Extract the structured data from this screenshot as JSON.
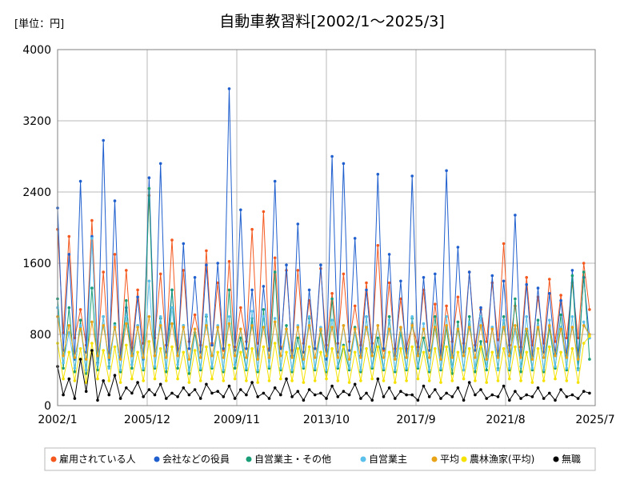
{
  "chart_data": {
    "type": "line",
    "title": "自動車教習料[2002/1～2025/3]",
    "unit_label": "[単位：円]",
    "ylim": [
      0,
      4000
    ],
    "yticks": [
      0,
      800,
      1600,
      2400,
      3200,
      4000
    ],
    "xlim": [
      "2002/1",
      "2025/7"
    ],
    "xticks": [
      "2002/1",
      "2005/12",
      "2009/11",
      "2013/10",
      "2017/9",
      "2021/8",
      "2025/7"
    ],
    "grid": true,
    "legend_position": "bottom",
    "sampling_note": "quarterly samples (Jan/Apr/Jul/Oct), values estimated from the chart",
    "series": [
      {
        "name": "雇用されている人",
        "color": "#F4581E",
        "values": [
          1980,
          820,
          1900,
          760,
          1080,
          680,
          2080,
          620,
          1500,
          590,
          1700,
          560,
          1520,
          650,
          1300,
          700,
          2360,
          760,
          1480,
          680,
          1860,
          640,
          1520,
          720,
          1020,
          680,
          1740,
          700,
          1380,
          620,
          1620,
          660,
          1100,
          720,
          1980,
          700,
          2180,
          640,
          1660,
          660,
          1520,
          620,
          1520,
          700,
          1180,
          640,
          1540,
          680,
          1260,
          700,
          1480,
          720,
          1120,
          680,
          1380,
          700,
          1800,
          620,
          1380,
          640,
          1200,
          640,
          920,
          660,
          1300,
          620,
          1140,
          560,
          1120,
          720,
          1220,
          700,
          1500,
          680,
          1080,
          720,
          1380,
          740,
          1820,
          680,
          1120,
          660,
          1440,
          680,
          1220,
          700,
          1420,
          720,
          1240,
          760,
          1380,
          760,
          1600,
          1080
        ]
      },
      {
        "name": "会社などの役員",
        "color": "#1F5FCE",
        "values": [
          2220,
          620,
          1700,
          520,
          2520,
          600,
          1900,
          480,
          2980,
          520,
          2300,
          540,
          1100,
          580,
          1220,
          520,
          2560,
          560,
          2720,
          600,
          1300,
          560,
          1820,
          640,
          1440,
          600,
          1580,
          680,
          1600,
          640,
          3560,
          620,
          2200,
          640,
          1300,
          560,
          1340,
          620,
          2520,
          640,
          1580,
          560,
          2040,
          600,
          1300,
          640,
          1580,
          520,
          2800,
          600,
          2720,
          620,
          1880,
          560,
          1300,
          600,
          2600,
          640,
          1700,
          560,
          1400,
          540,
          2580,
          580,
          1440,
          620,
          1480,
          520,
          2640,
          560,
          1780,
          600,
          1500,
          620,
          1100,
          520,
          1460,
          560,
          1400,
          600,
          2140,
          560,
          1360,
          560,
          1320,
          600,
          1260,
          580,
          1180,
          560,
          1520,
          560,
          1440,
          760
        ]
      },
      {
        "name": "自営業主・その他",
        "color": "#1A9E77",
        "values": [
          1200,
          420,
          1100,
          380,
          960,
          360,
          1320,
          400,
          1000,
          440,
          920,
          380,
          1180,
          420,
          900,
          400,
          2440,
          420,
          980,
          380,
          1300,
          420,
          900,
          360,
          820,
          400,
          1000,
          420,
          880,
          380,
          1300,
          420,
          760,
          400,
          980,
          380,
          1080,
          420,
          1500,
          400,
          900,
          380,
          760,
          420,
          980,
          400,
          840,
          380,
          1200,
          420,
          680,
          400,
          880,
          380,
          1000,
          420,
          760,
          400,
          1000,
          380,
          820,
          400,
          980,
          420,
          760,
          380,
          1000,
          400,
          880,
          360,
          940,
          400,
          1000,
          380,
          720,
          400,
          880,
          420,
          1000,
          400,
          1200,
          380,
          840,
          400,
          960,
          380,
          880,
          420,
          1020,
          400,
          1460,
          420,
          1500,
          520
        ]
      },
      {
        "name": "自営業主",
        "color": "#5BC0EB",
        "values": [
          1100,
          480,
          820,
          420,
          900,
          400,
          1880,
          460,
          1000,
          420,
          900,
          400,
          1000,
          460,
          900,
          420,
          1400,
          440,
          1000,
          420,
          1100,
          460,
          900,
          400,
          860,
          420,
          1020,
          440,
          900,
          400,
          1000,
          460,
          860,
          420,
          1060,
          400,
          1000,
          440,
          980,
          420,
          860,
          400,
          900,
          440,
          1000,
          420,
          880,
          400,
          960,
          440,
          900,
          420,
          820,
          400,
          1000,
          440,
          900,
          420,
          960,
          400,
          860,
          420,
          1000,
          440,
          920,
          400,
          880,
          420,
          1000,
          440,
          860,
          400,
          940,
          420,
          1000,
          440,
          880,
          400,
          960,
          420,
          860,
          440,
          1000,
          420,
          900,
          400,
          960,
          440,
          880,
          420,
          1000,
          400,
          940,
          760
        ]
      },
      {
        "name": "平均",
        "color": "#E8A317",
        "values": [
          1000,
          560,
          900,
          540,
          860,
          520,
          940,
          560,
          900,
          540,
          880,
          520,
          920,
          560,
          880,
          540,
          1000,
          560,
          900,
          540,
          920,
          560,
          880,
          520,
          860,
          540,
          900,
          560,
          880,
          540,
          920,
          560,
          860,
          540,
          900,
          520,
          880,
          540,
          940,
          560,
          860,
          540,
          880,
          520,
          900,
          540,
          860,
          560,
          880,
          540,
          900,
          520,
          860,
          540,
          880,
          560,
          900,
          540,
          860,
          520,
          880,
          540,
          900,
          560,
          860,
          540,
          880,
          520,
          900,
          540,
          860,
          560,
          880,
          540,
          900,
          520,
          860,
          540,
          880,
          560,
          900,
          540,
          860,
          520,
          880,
          540,
          900,
          560,
          860,
          540,
          880,
          520,
          900,
          800
        ]
      },
      {
        "name": "農林漁家(平均)",
        "color": "#F5E200",
        "values": [
          700,
          300,
          600,
          280,
          640,
          260,
          700,
          300,
          620,
          280,
          660,
          260,
          680,
          300,
          600,
          280,
          720,
          300,
          640,
          280,
          660,
          300,
          600,
          260,
          620,
          280,
          660,
          300,
          600,
          280,
          680,
          300,
          600,
          280,
          640,
          260,
          660,
          280,
          700,
          300,
          600,
          280,
          640,
          260,
          660,
          280,
          600,
          300,
          640,
          280,
          660,
          260,
          600,
          280,
          640,
          300,
          660,
          280,
          600,
          260,
          640,
          280,
          660,
          300,
          600,
          280,
          640,
          260,
          660,
          280,
          600,
          300,
          640,
          280,
          660,
          260,
          600,
          280,
          640,
          300,
          660,
          280,
          600,
          260,
          640,
          280,
          660,
          300,
          600,
          280,
          640,
          260,
          700,
          780
        ]
      },
      {
        "name": "無職",
        "color": "#000000",
        "values": [
          440,
          120,
          300,
          80,
          520,
          160,
          620,
          60,
          280,
          120,
          340,
          80,
          200,
          140,
          260,
          100,
          180,
          120,
          240,
          80,
          140,
          100,
          200,
          120,
          180,
          80,
          240,
          140,
          160,
          100,
          220,
          80,
          180,
          120,
          260,
          100,
          140,
          80,
          200,
          120,
          300,
          100,
          160,
          60,
          180,
          120,
          140,
          80,
          220,
          100,
          160,
          120,
          240,
          80,
          140,
          60,
          300,
          100,
          200,
          80,
          160,
          120,
          120,
          60,
          220,
          100,
          180,
          80,
          140,
          100,
          200,
          60,
          260,
          120,
          180,
          80,
          120,
          100,
          220,
          60,
          160,
          80,
          120,
          100,
          200,
          80,
          140,
          60,
          180,
          100,
          120,
          80,
          160,
          140
        ]
      }
    ]
  }
}
